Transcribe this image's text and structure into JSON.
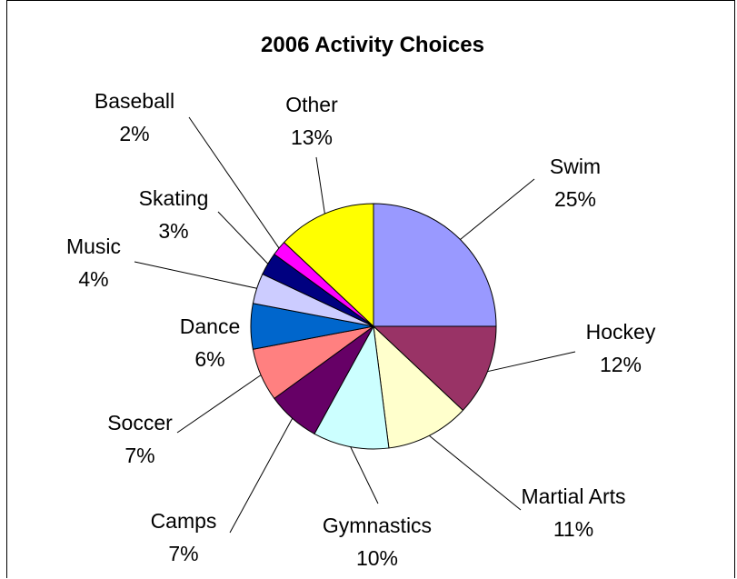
{
  "chart_data": {
    "type": "pie",
    "title": "2006 Activity Choices",
    "slices": [
      {
        "label": "Swim",
        "pct_text": "25%",
        "value": 25,
        "color": "#9999ff"
      },
      {
        "label": "Hockey",
        "pct_text": "12%",
        "value": 12,
        "color": "#993366"
      },
      {
        "label": "Martial Arts",
        "pct_text": "11%",
        "value": 11,
        "color": "#ffffcc"
      },
      {
        "label": "Gymnastics",
        "pct_text": "10%",
        "value": 10,
        "color": "#ccffff"
      },
      {
        "label": "Camps",
        "pct_text": "7%",
        "value": 7,
        "color": "#660066"
      },
      {
        "label": "Soccer",
        "pct_text": "7%",
        "value": 7,
        "color": "#ff8080"
      },
      {
        "label": "Dance",
        "pct_text": "6%",
        "value": 6,
        "color": "#0066cc"
      },
      {
        "label": "Music",
        "pct_text": "4%",
        "value": 4,
        "color": "#ccccff"
      },
      {
        "label": "Skating",
        "pct_text": "3%",
        "value": 3,
        "color": "#000080"
      },
      {
        "label": "Baseball",
        "pct_text": "2%",
        "value": 2,
        "color": "#ff00ff"
      },
      {
        "label": "Other",
        "pct_text": "13%",
        "value": 13,
        "color": "#ffff00"
      }
    ]
  }
}
